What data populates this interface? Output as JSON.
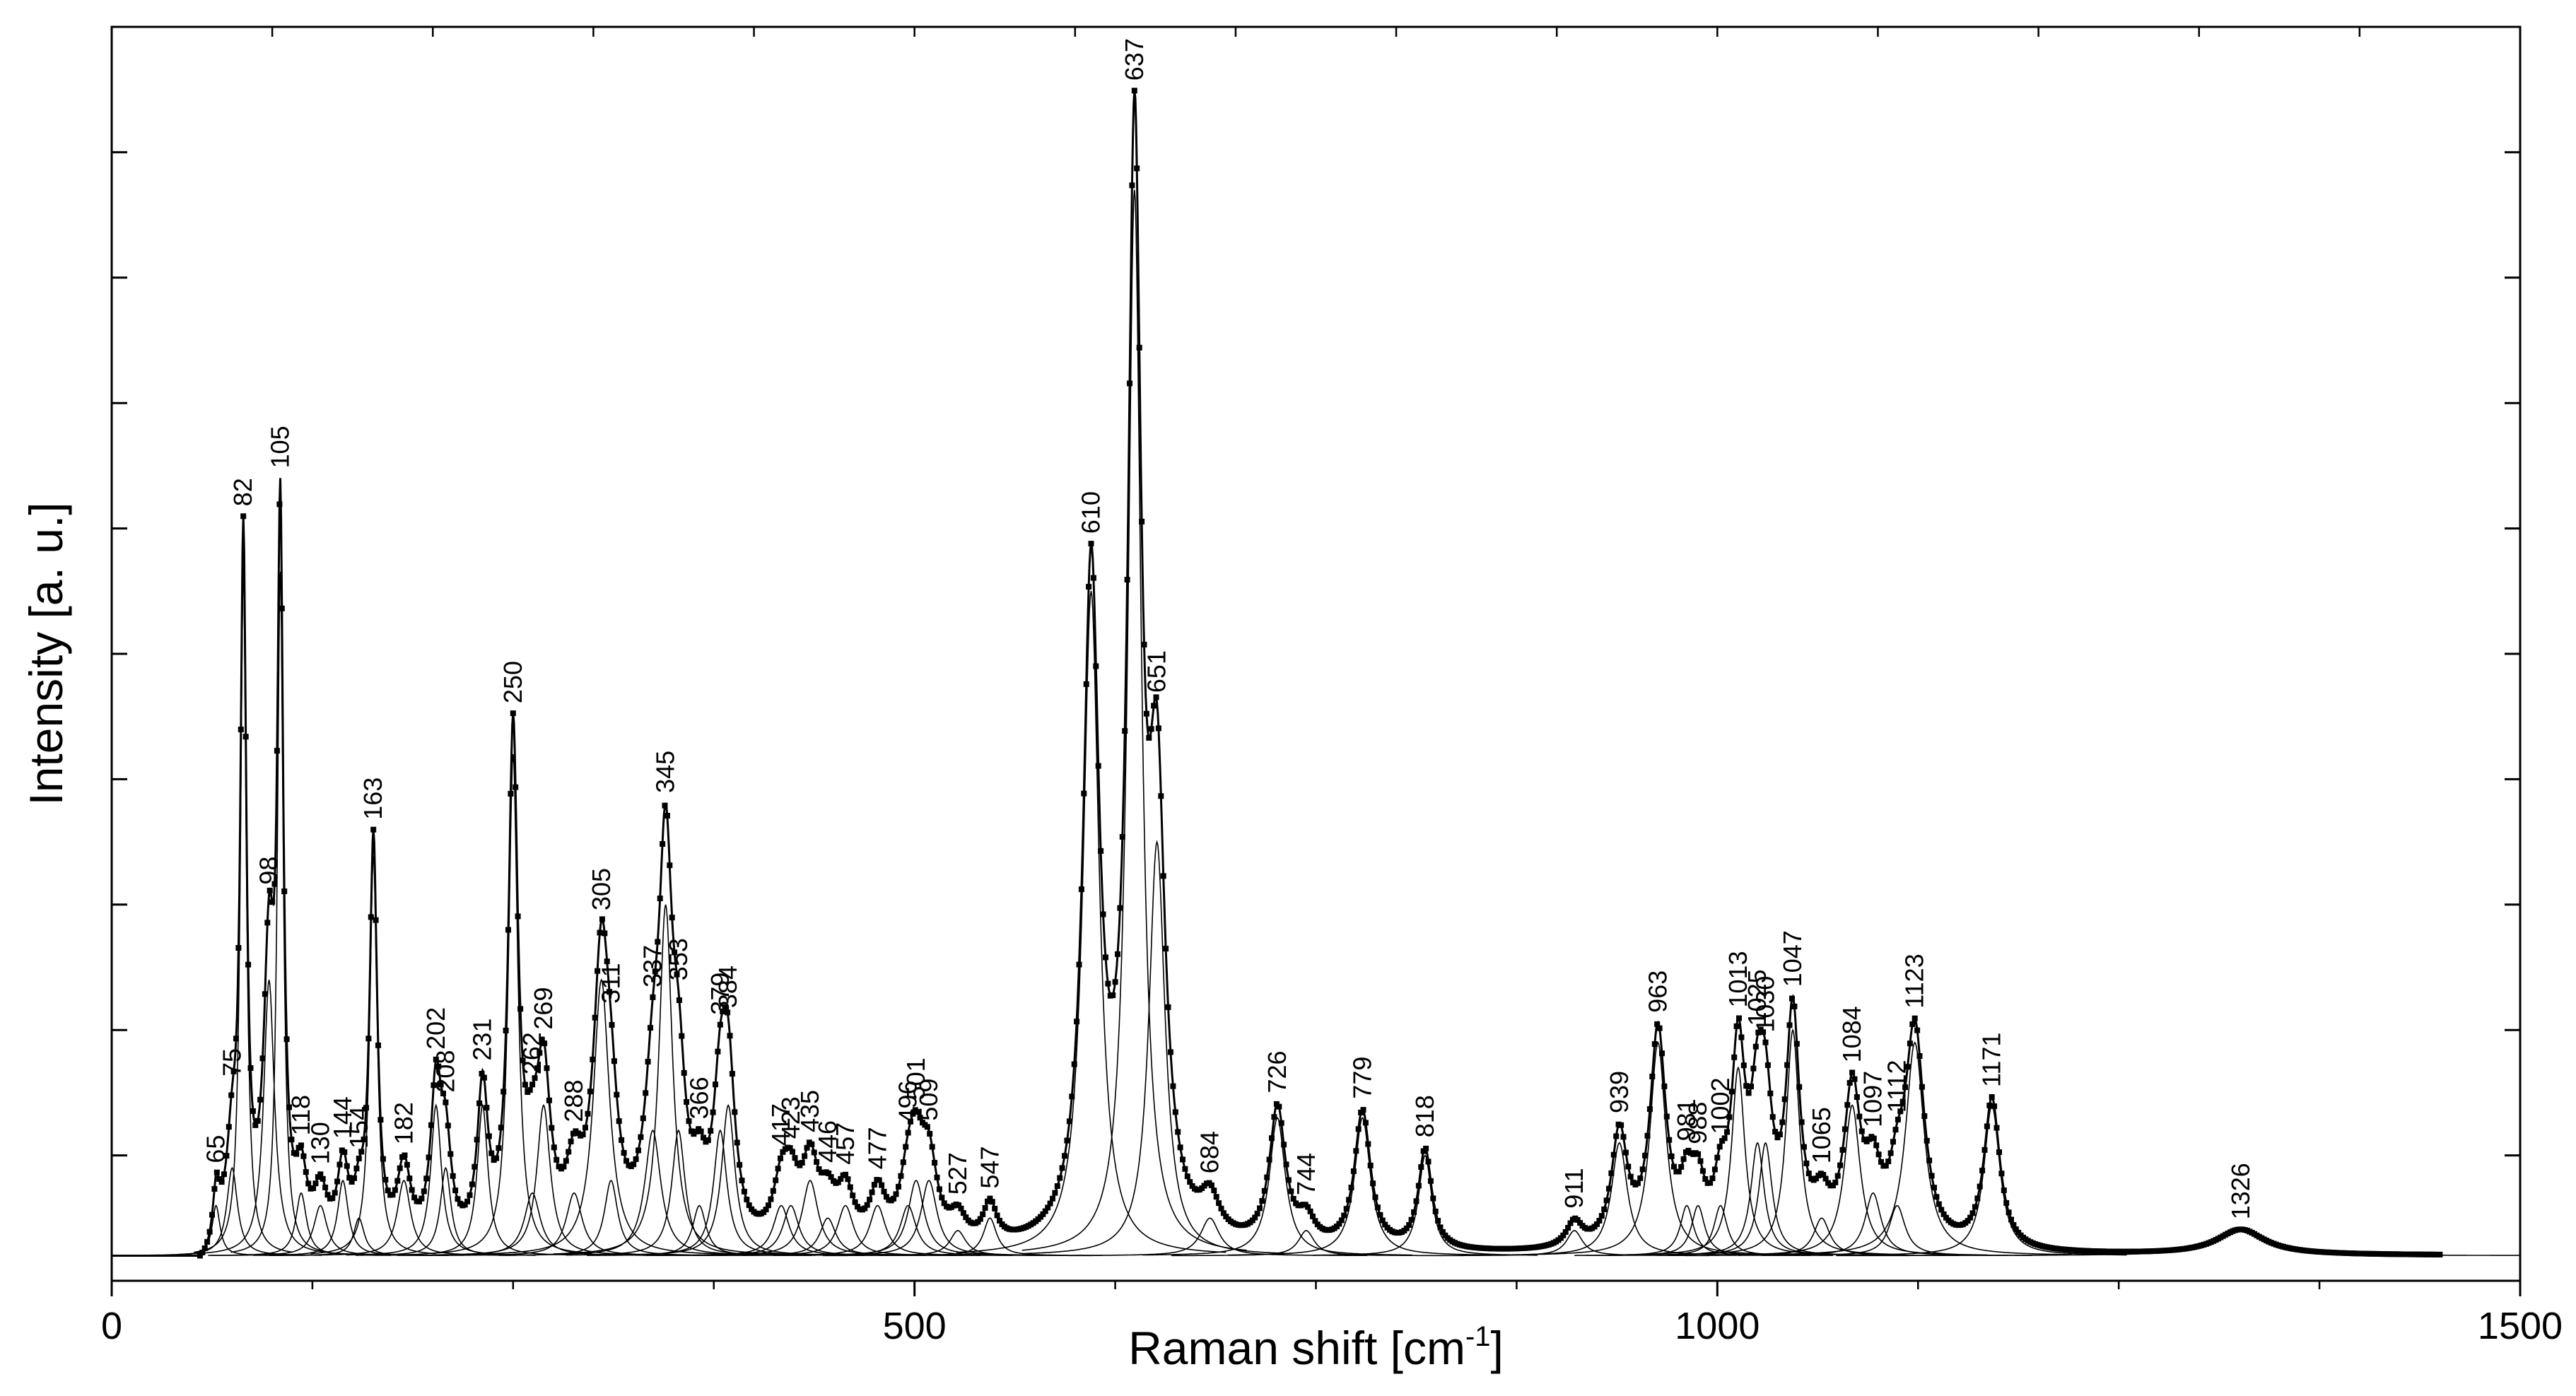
{
  "chart_data": {
    "type": "line",
    "title": "",
    "xlabel": "Raman shift [cm",
    "xlabel_sup": "-1",
    "xlabel_end": "]",
    "ylabel": "Intensity [a. u.]",
    "xlim": [
      0,
      1500
    ],
    "ylim": [
      0,
      1.0
    ],
    "x_ticks": [
      0,
      500,
      1000,
      1500
    ],
    "x_tick_labels": [
      "0",
      "500",
      "1000",
      "1500"
    ],
    "y_tick_labels": [],
    "grid": false,
    "legend": "none",
    "baseline": 0.02,
    "series": [
      {
        "name": "",
        "role": "measured spectrum (markers)"
      },
      {
        "name": "",
        "role": "fitted envelope"
      },
      {
        "name": "",
        "role": "fitted component bands"
      }
    ],
    "peaks": [
      {
        "x": 65,
        "label": "65",
        "h": 0.04,
        "w": 3
      },
      {
        "x": 75,
        "label": "75",
        "h": 0.07,
        "w": 4
      },
      {
        "x": 82,
        "label": "82",
        "h": 0.55,
        "w": 2.2
      },
      {
        "x": 98,
        "label": "98",
        "h": 0.22,
        "w": 4
      },
      {
        "x": 105,
        "label": "105",
        "h": 0.55,
        "w": 2.2
      },
      {
        "x": 118,
        "label": "118",
        "h": 0.05,
        "w": 4
      },
      {
        "x": 130,
        "label": "130",
        "h": 0.04,
        "w": 5
      },
      {
        "x": 144,
        "label": "144",
        "h": 0.06,
        "w": 4
      },
      {
        "x": 154,
        "label": "154",
        "h": 0.03,
        "w": 4
      },
      {
        "x": 163,
        "label": "163",
        "h": 0.32,
        "w": 2.8
      },
      {
        "x": 182,
        "label": "182",
        "h": 0.06,
        "w": 5
      },
      {
        "x": 202,
        "label": "202",
        "h": 0.12,
        "w": 4
      },
      {
        "x": 208,
        "label": "208",
        "h": 0.07,
        "w": 4
      },
      {
        "x": 231,
        "label": "231",
        "h": 0.12,
        "w": 4
      },
      {
        "x": 250,
        "label": "250",
        "h": 0.4,
        "w": 3.5
      },
      {
        "x": 262,
        "label": "262",
        "h": 0.05,
        "w": 6
      },
      {
        "x": 269,
        "label": "269",
        "h": 0.12,
        "w": 5
      },
      {
        "x": 288,
        "label": "288",
        "h": 0.05,
        "w": 6
      },
      {
        "x": 305,
        "label": "305",
        "h": 0.22,
        "w": 6
      },
      {
        "x": 311,
        "label": "311",
        "h": 0.06,
        "w": 5
      },
      {
        "x": 337,
        "label": "337",
        "h": 0.1,
        "w": 6
      },
      {
        "x": 345,
        "label": "345",
        "h": 0.28,
        "w": 5
      },
      {
        "x": 353,
        "label": "353",
        "h": 0.1,
        "w": 5
      },
      {
        "x": 366,
        "label": "366",
        "h": 0.04,
        "w": 5
      },
      {
        "x": 379,
        "label": "379",
        "h": 0.1,
        "w": 5
      },
      {
        "x": 384,
        "label": "384",
        "h": 0.12,
        "w": 5
      },
      {
        "x": 417,
        "label": "417",
        "h": 0.04,
        "w": 6
      },
      {
        "x": 423,
        "label": "423",
        "h": 0.04,
        "w": 6
      },
      {
        "x": 435,
        "label": "435",
        "h": 0.06,
        "w": 6
      },
      {
        "x": 446,
        "label": "446",
        "h": 0.03,
        "w": 6
      },
      {
        "x": 457,
        "label": "457",
        "h": 0.04,
        "w": 6
      },
      {
        "x": 477,
        "label": "477",
        "h": 0.04,
        "w": 6
      },
      {
        "x": 496,
        "label": "496",
        "h": 0.04,
        "w": 6
      },
      {
        "x": 501,
        "label": "501",
        "h": 0.06,
        "w": 6
      },
      {
        "x": 509,
        "label": "509",
        "h": 0.06,
        "w": 6
      },
      {
        "x": 527,
        "label": "527",
        "h": 0.02,
        "w": 6
      },
      {
        "x": 547,
        "label": "547",
        "h": 0.03,
        "w": 5
      },
      {
        "x": 610,
        "label": "610",
        "h": 0.53,
        "w": 6
      },
      {
        "x": 637,
        "label": "637",
        "h": 0.85,
        "w": 5
      },
      {
        "x": 651,
        "label": "651",
        "h": 0.33,
        "w": 6
      },
      {
        "x": 684,
        "label": "684",
        "h": 0.03,
        "w": 7
      },
      {
        "x": 726,
        "label": "726",
        "h": 0.11,
        "w": 6
      },
      {
        "x": 744,
        "label": "744",
        "h": 0.02,
        "w": 6
      },
      {
        "x": 779,
        "label": "779",
        "h": 0.11,
        "w": 6
      },
      {
        "x": 818,
        "label": "818",
        "h": 0.08,
        "w": 5
      },
      {
        "x": 911,
        "label": "911",
        "h": 0.02,
        "w": 6
      },
      {
        "x": 939,
        "label": "939",
        "h": 0.09,
        "w": 6
      },
      {
        "x": 963,
        "label": "963",
        "h": 0.17,
        "w": 6
      },
      {
        "x": 981,
        "label": "981",
        "h": 0.04,
        "w": 5
      },
      {
        "x": 988,
        "label": "988",
        "h": 0.04,
        "w": 5
      },
      {
        "x": 1002,
        "label": "1002",
        "h": 0.04,
        "w": 5
      },
      {
        "x": 1013,
        "label": "1013",
        "h": 0.15,
        "w": 5
      },
      {
        "x": 1025,
        "label": "1025",
        "h": 0.09,
        "w": 5
      },
      {
        "x": 1030,
        "label": "1030",
        "h": 0.09,
        "w": 5
      },
      {
        "x": 1047,
        "label": "1047",
        "h": 0.18,
        "w": 5
      },
      {
        "x": 1065,
        "label": "1065",
        "h": 0.03,
        "w": 6
      },
      {
        "x": 1084,
        "label": "1084",
        "h": 0.12,
        "w": 6
      },
      {
        "x": 1097,
        "label": "1097",
        "h": 0.05,
        "w": 6
      },
      {
        "x": 1112,
        "label": "1112",
        "h": 0.04,
        "w": 6
      },
      {
        "x": 1123,
        "label": "1123",
        "h": 0.17,
        "w": 7
      },
      {
        "x": 1171,
        "label": "1171",
        "h": 0.12,
        "w": 6
      },
      {
        "x": 1326,
        "label": "1326",
        "h": 0.02,
        "w": 18
      }
    ]
  },
  "colors": {
    "background": "#ffffff",
    "ink": "#000000"
  }
}
